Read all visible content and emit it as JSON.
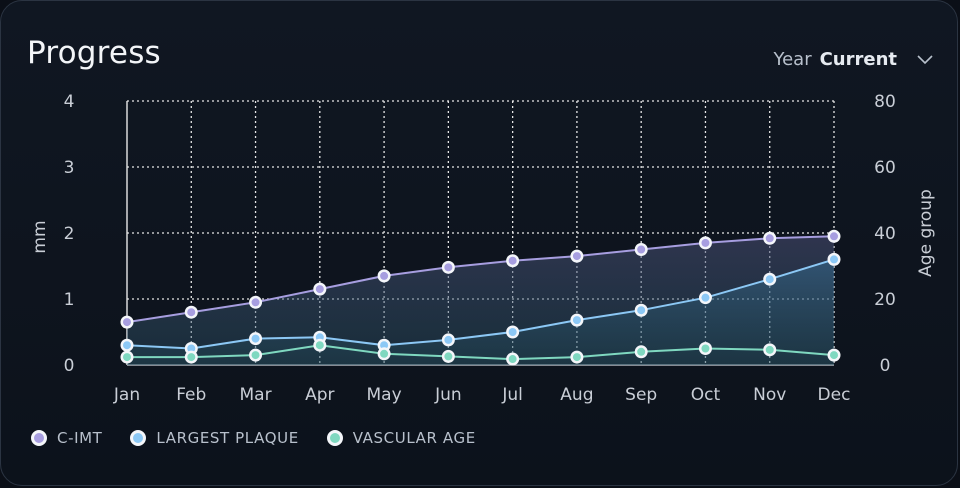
{
  "header": {
    "title": "Progress",
    "year_label": "Year",
    "year_value": "Current"
  },
  "colors": {
    "c_imt": "#a79ee0",
    "largest_plaque": "#8cc8f5",
    "vascular_age": "#7fd8c0",
    "grid": "#e6e6e6"
  },
  "chart_data": {
    "type": "line",
    "x": [
      "Jan",
      "Feb",
      "Mar",
      "Apr",
      "May",
      "Jun",
      "Jul",
      "Aug",
      "Sep",
      "Oct",
      "Nov",
      "Dec"
    ],
    "ylabel": "mm",
    "y2label": "Age group",
    "ylim": [
      0,
      4
    ],
    "y2lim": [
      0,
      80
    ],
    "yticks": [
      "0",
      "1",
      "2",
      "3",
      "4"
    ],
    "y2ticks": [
      "0",
      "20",
      "40",
      "60",
      "80"
    ],
    "grid": true,
    "legend_position": "bottom-left",
    "series": [
      {
        "name": "C-IMT",
        "axis": "left",
        "area": true,
        "values": [
          0.65,
          0.8,
          0.95,
          1.15,
          1.35,
          1.48,
          1.58,
          1.65,
          1.75,
          1.85,
          1.92,
          1.95
        ]
      },
      {
        "name": "LARGEST PLAQUE",
        "axis": "left",
        "area": true,
        "values": [
          0.3,
          0.25,
          0.4,
          0.42,
          0.3,
          0.38,
          0.5,
          0.68,
          0.83,
          1.02,
          1.3,
          1.6
        ]
      },
      {
        "name": "VASCULAR AGE",
        "axis": "left",
        "area": false,
        "values": [
          0.12,
          0.12,
          0.15,
          0.3,
          0.17,
          0.13,
          0.09,
          0.12,
          0.2,
          0.25,
          0.23,
          0.15
        ]
      }
    ]
  }
}
